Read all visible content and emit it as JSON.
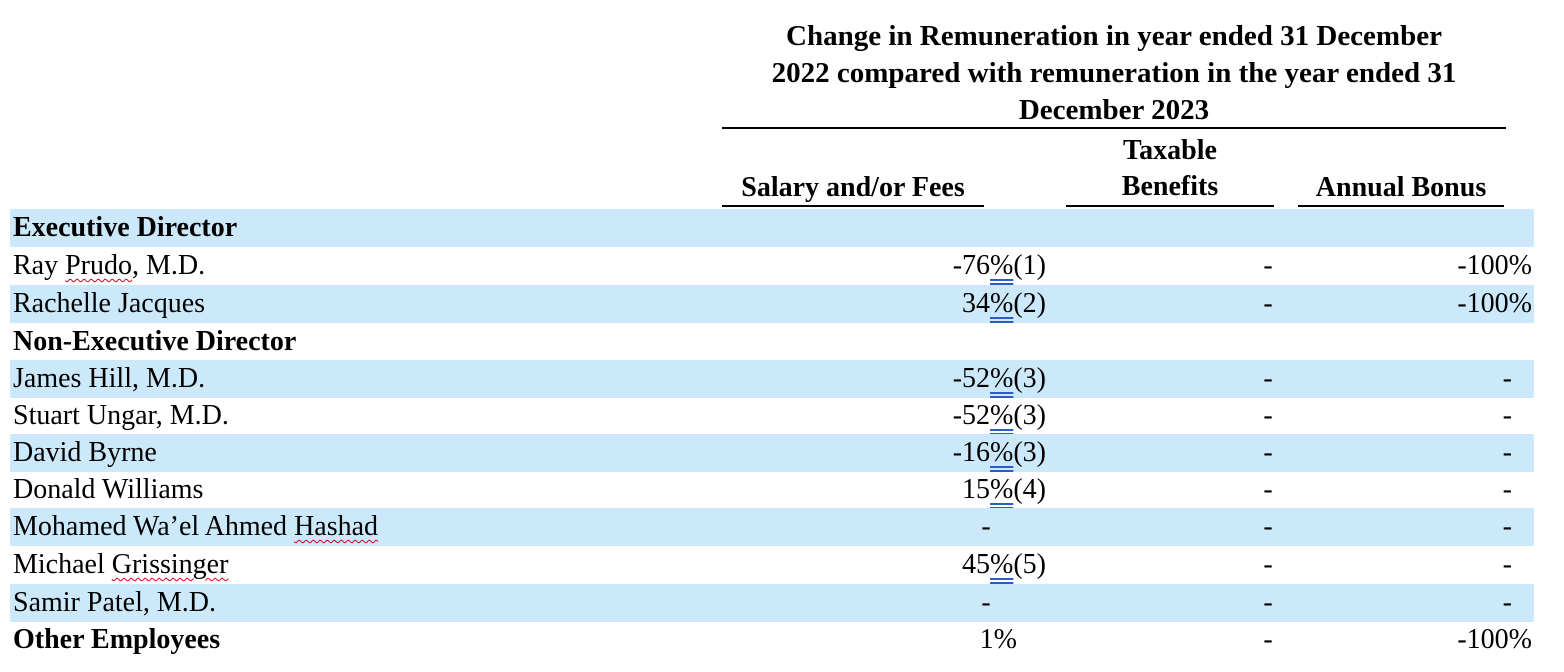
{
  "header": {
    "title": "Change in Remuneration in year ended 31 December 2022 compared with remuneration in the year ended 31 December 2023",
    "title_lines": [
      "Change in Remuneration in year ended 31 December",
      "2022 compared with remuneration in the year ended 31",
      "December 2023"
    ],
    "col_salary": "Salary and/or Fees",
    "col_benefits_line1": "Taxable",
    "col_benefits_line2": "Benefits",
    "col_bonus": "Annual Bonus"
  },
  "rows": [
    {
      "name": "Executive Director",
      "section": true
    },
    {
      "name": "Ray Prudo, M.D.",
      "salary_value": "-76",
      "salary_pct": "%",
      "salary_note": "(1)",
      "benefits": "-",
      "bonus": "-100%"
    },
    {
      "name": "Rachelle Jacques",
      "salary_value": "34",
      "salary_pct": "%",
      "salary_note": "(2)",
      "benefits": "-",
      "bonus": "-100%"
    },
    {
      "name": "Non-Executive Director",
      "section": true
    },
    {
      "name": "James Hill, M.D.",
      "salary_value": "-52",
      "salary_pct": "%",
      "salary_note": "(3)",
      "benefits": "-",
      "bonus": "-"
    },
    {
      "name": "Stuart Ungar, M.D.",
      "salary_value": "-52",
      "salary_pct": "%",
      "salary_note": "(3)",
      "benefits": "-",
      "bonus": "-"
    },
    {
      "name": "David Byrne",
      "salary_value": "-16",
      "salary_pct": "%",
      "salary_note": "(3)",
      "benefits": "-",
      "bonus": "-"
    },
    {
      "name": "Donald Williams",
      "salary_value": "15",
      "salary_pct": "%",
      "salary_note": "(4)",
      "benefits": "-",
      "bonus": "-"
    },
    {
      "name": "Mohamed Wa’el Ahmed Hashad",
      "salary": "-",
      "benefits": "-",
      "bonus": "-"
    },
    {
      "name": "Michael Grissinger",
      "salary_value": "45",
      "salary_pct": "%",
      "salary_note": "(5)",
      "benefits": "-",
      "bonus": "-"
    },
    {
      "name": "Samir Patel, M.D.",
      "salary": "-",
      "benefits": "-",
      "bonus": "-"
    },
    {
      "name": "Other Employees",
      "section": true,
      "salary": "1%",
      "benefits": "-",
      "bonus": "-100%"
    }
  ],
  "colors": {
    "band": "#cce9fb",
    "spell_underline": "#d0021b",
    "link_underline": "#2f5cc4"
  }
}
